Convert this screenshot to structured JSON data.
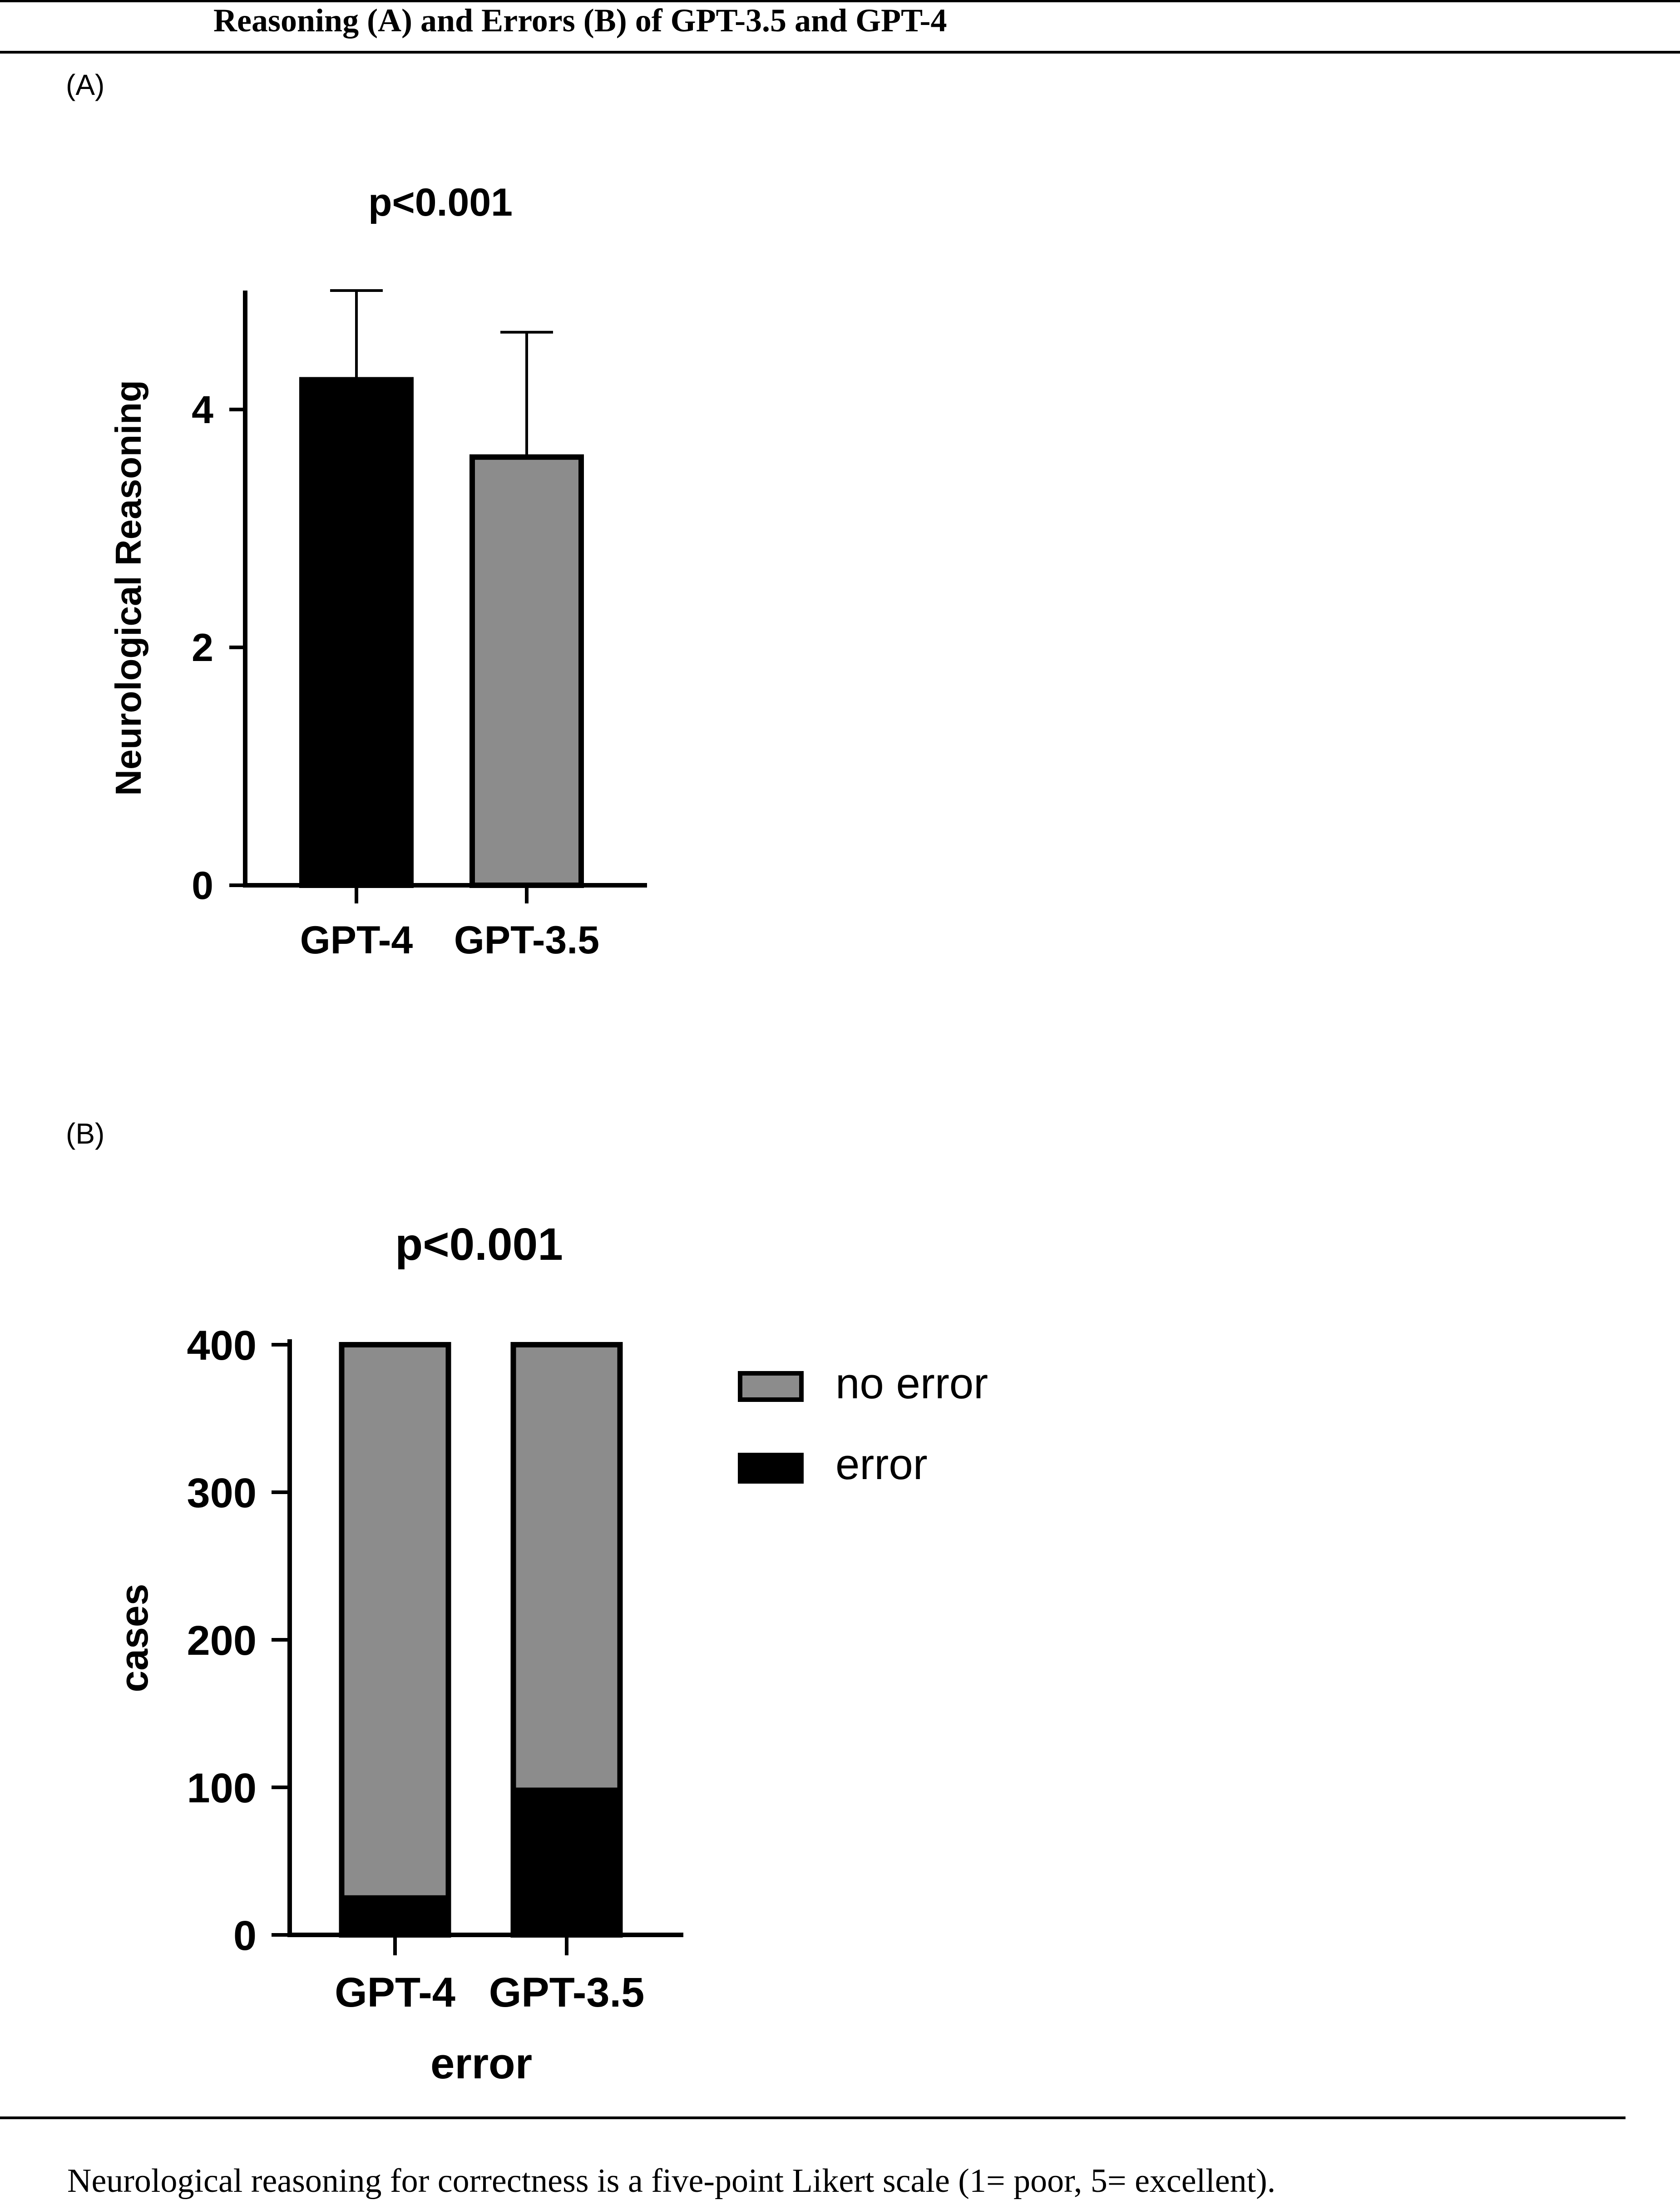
{
  "header": {
    "title": "Reasoning (A) and Errors (B) of GPT-3.5 and GPT-4"
  },
  "panel_a": {
    "label": "(A)"
  },
  "panel_b": {
    "label": "(B)"
  },
  "footnote": "Neurological reasoning for correctness is a five-point Likert scale (1= poor, 5= excellent).",
  "colors": {
    "gpt4_bar": "#000000",
    "gpt35_bar": "#8c8c8c",
    "no_error": "#8c8c8c",
    "error": "#000000"
  },
  "chart_data": [
    {
      "type": "bar",
      "title": "p<0.001",
      "categories": [
        "GPT-4",
        "GPT-3.5"
      ],
      "values": [
        4.25,
        3.6
      ],
      "error_upper": [
        5.0,
        4.65
      ],
      "ylabel": "Neurological Reasoning",
      "xlabel": "",
      "ylim": [
        0,
        5
      ],
      "yticks": [
        0,
        2,
        4
      ],
      "grid": false
    },
    {
      "type": "bar",
      "stacked": true,
      "title": "p<0.001",
      "categories": [
        "GPT-4",
        "GPT-3.5"
      ],
      "series": [
        {
          "name": "error",
          "values": [
            25,
            98
          ]
        },
        {
          "name": "no error",
          "values": [
            375,
            302
          ]
        }
      ],
      "ylabel": "cases",
      "xlabel": "error",
      "ylim": [
        0,
        400
      ],
      "yticks": [
        0,
        100,
        200,
        300,
        400
      ],
      "legend": {
        "position": "right",
        "entries": [
          "no error",
          "error"
        ]
      },
      "grid": false
    }
  ]
}
